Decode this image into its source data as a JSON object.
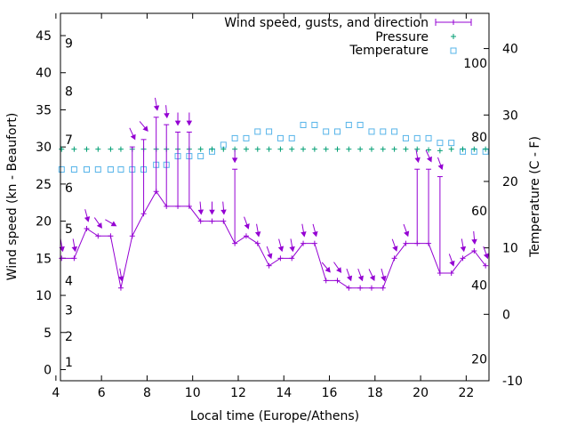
{
  "chart_data": {
    "type": "line",
    "x_axis": {
      "label": "Local time (Europe/Athens)",
      "range": [
        4.2,
        23.0
      ],
      "ticks": [
        4,
        6,
        8,
        10,
        12,
        14,
        16,
        18,
        20,
        22
      ]
    },
    "y_left": {
      "label": "Wind speed (kn - Beaufort)",
      "range": [
        -1.5,
        48
      ],
      "ticks": [
        0,
        5,
        10,
        15,
        20,
        25,
        30,
        35,
        40,
        45
      ]
    },
    "y_right": {
      "label": "Temperature (C - F)",
      "range": [
        -10,
        45.3
      ],
      "ticks": [
        -10,
        0,
        10,
        20,
        30,
        40
      ]
    },
    "beaufort_labels": [
      {
        "label": "1",
        "kn": 1
      },
      {
        "label": "2",
        "kn": 4.5
      },
      {
        "label": "3",
        "kn": 8
      },
      {
        "label": "4",
        "kn": 12
      },
      {
        "label": "5",
        "kn": 19
      },
      {
        "label": "6",
        "kn": 24.5
      },
      {
        "label": "7",
        "kn": 31
      },
      {
        "label": "8",
        "kn": 37.5
      },
      {
        "label": "9",
        "kn": 44
      }
    ],
    "fahrenheit_labels": [
      {
        "label": "20",
        "celsius": -6.7
      },
      {
        "label": "40",
        "celsius": 4.4
      },
      {
        "label": "60",
        "celsius": 15.6
      },
      {
        "label": "80",
        "celsius": 26.7
      },
      {
        "label": "100",
        "celsius": 37.8
      }
    ],
    "legend_position": "top-right",
    "series": [
      {
        "name": "Wind speed, gusts, and direction",
        "color": "#9400d3",
        "points": [
          {
            "x": 4.25,
            "speed": 15,
            "gust": null,
            "dir": 190
          },
          {
            "x": 4.8,
            "speed": 15,
            "gust": null,
            "dir": 190
          },
          {
            "x": 5.35,
            "speed": 19,
            "gust": null,
            "dir": 195
          },
          {
            "x": 5.85,
            "speed": 18,
            "gust": null,
            "dir": 215
          },
          {
            "x": 6.4,
            "speed": 18,
            "gust": null,
            "dir": 240
          },
          {
            "x": 6.85,
            "speed": 11,
            "gust": null,
            "dir": 190
          },
          {
            "x": 7.35,
            "speed": 18,
            "gust": 30,
            "dir": 205
          },
          {
            "x": 7.85,
            "speed": 21,
            "gust": 31,
            "dir": 220
          },
          {
            "x": 8.4,
            "speed": 24,
            "gust": 34,
            "dir": 190
          },
          {
            "x": 8.85,
            "speed": 22,
            "gust": 33,
            "dir": 185
          },
          {
            "x": 9.35,
            "speed": 22,
            "gust": 32,
            "dir": 180
          },
          {
            "x": 9.85,
            "speed": 22,
            "gust": 32,
            "dir": 180
          },
          {
            "x": 10.35,
            "speed": 20,
            "gust": null,
            "dir": 185
          },
          {
            "x": 10.85,
            "speed": 20,
            "gust": null,
            "dir": 180
          },
          {
            "x": 11.35,
            "speed": 20,
            "gust": null,
            "dir": 185
          },
          {
            "x": 11.85,
            "speed": 17,
            "gust": 27,
            "dir": 180
          },
          {
            "x": 12.35,
            "speed": 18,
            "gust": null,
            "dir": 200
          },
          {
            "x": 12.85,
            "speed": 17,
            "gust": null,
            "dir": 190
          },
          {
            "x": 13.35,
            "speed": 14,
            "gust": null,
            "dir": 200
          },
          {
            "x": 13.85,
            "speed": 15,
            "gust": null,
            "dir": 195
          },
          {
            "x": 14.35,
            "speed": 15,
            "gust": null,
            "dir": 190
          },
          {
            "x": 14.85,
            "speed": 17,
            "gust": null,
            "dir": 190
          },
          {
            "x": 15.35,
            "speed": 17,
            "gust": null,
            "dir": 195
          },
          {
            "x": 15.85,
            "speed": 12,
            "gust": null,
            "dir": 220
          },
          {
            "x": 16.35,
            "speed": 12,
            "gust": null,
            "dir": 215
          },
          {
            "x": 16.85,
            "speed": 11,
            "gust": null,
            "dir": 200
          },
          {
            "x": 17.35,
            "speed": 11,
            "gust": null,
            "dir": 200
          },
          {
            "x": 17.85,
            "speed": 11,
            "gust": null,
            "dir": 205
          },
          {
            "x": 18.35,
            "speed": 11,
            "gust": null,
            "dir": 195
          },
          {
            "x": 18.85,
            "speed": 15,
            "gust": null,
            "dir": 200
          },
          {
            "x": 19.35,
            "speed": 17,
            "gust": null,
            "dir": 200
          },
          {
            "x": 19.85,
            "speed": 17,
            "gust": 27,
            "dir": 190
          },
          {
            "x": 20.35,
            "speed": 17,
            "gust": 27,
            "dir": 205
          },
          {
            "x": 20.85,
            "speed": 13,
            "gust": 26,
            "dir": 200
          },
          {
            "x": 21.35,
            "speed": 13,
            "gust": null,
            "dir": 200
          },
          {
            "x": 21.85,
            "speed": 15,
            "gust": null,
            "dir": 190
          },
          {
            "x": 22.35,
            "speed": 16,
            "gust": null,
            "dir": 185
          },
          {
            "x": 22.85,
            "speed": 14,
            "gust": null,
            "dir": 200
          }
        ]
      },
      {
        "name": "Pressure",
        "color": "#009e73",
        "marker": "plus",
        "axis": "left",
        "x": [
          4.25,
          4.8,
          5.35,
          5.85,
          6.4,
          6.85,
          7.35,
          7.85,
          8.4,
          8.85,
          9.35,
          9.85,
          10.35,
          10.85,
          11.35,
          11.85,
          12.35,
          12.85,
          13.35,
          13.85,
          14.35,
          14.85,
          15.35,
          15.85,
          16.35,
          16.85,
          17.35,
          17.85,
          18.35,
          18.85,
          19.35,
          19.85,
          20.35,
          20.85,
          21.35,
          21.85,
          22.35,
          22.85
        ],
        "y": [
          29.7,
          29.7,
          29.7,
          29.7,
          29.7,
          29.7,
          29.7,
          29.7,
          29.7,
          29.7,
          29.7,
          29.7,
          29.7,
          29.7,
          29.7,
          29.7,
          29.7,
          29.7,
          29.7,
          29.7,
          29.7,
          29.7,
          29.7,
          29.7,
          29.7,
          29.7,
          29.7,
          29.7,
          29.7,
          29.7,
          29.7,
          29.7,
          29.6,
          29.5,
          29.7,
          29.7,
          29.7,
          29.7
        ]
      },
      {
        "name": "Temperature",
        "color": "#56b4e9",
        "marker": "square",
        "axis": "right",
        "x": [
          4.25,
          4.8,
          5.35,
          5.85,
          6.4,
          6.85,
          7.35,
          7.85,
          8.4,
          8.85,
          9.35,
          9.85,
          10.35,
          10.85,
          11.35,
          11.85,
          12.35,
          12.85,
          13.35,
          13.85,
          14.35,
          14.85,
          15.35,
          15.85,
          16.35,
          16.85,
          17.35,
          17.85,
          18.35,
          18.85,
          19.35,
          19.85,
          20.35,
          20.85,
          21.35,
          21.85,
          22.35,
          22.85
        ],
        "y": [
          21.8,
          21.8,
          21.8,
          21.8,
          21.8,
          21.8,
          21.8,
          21.8,
          22.5,
          22.5,
          23.8,
          23.8,
          23.8,
          24.5,
          25.5,
          26.5,
          26.5,
          27.5,
          27.5,
          26.5,
          26.5,
          28.5,
          28.5,
          27.5,
          27.5,
          28.5,
          28.5,
          27.5,
          27.5,
          27.5,
          26.5,
          26.5,
          26.5,
          25.8,
          25.8,
          24.5,
          24.5,
          24.5
        ]
      }
    ]
  }
}
